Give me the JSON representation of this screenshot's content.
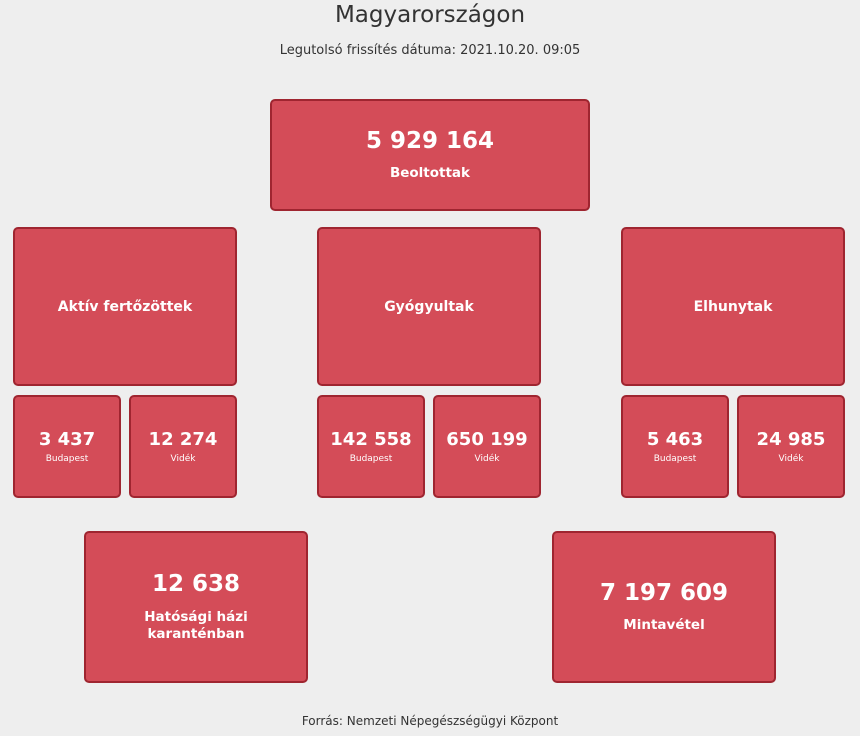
{
  "header": {
    "title": "Magyarországon",
    "updated": "Legutolsó frissítés dátuma: 2021.10.20. 09:05"
  },
  "vaccinated": {
    "value": "5 929 164",
    "label": "Beoltottak"
  },
  "groups": {
    "active": {
      "label": "Aktív fertőzöttek",
      "budapest": {
        "value": "3 437",
        "label": "Budapest"
      },
      "countryside": {
        "value": "12 274",
        "label": "Vidék"
      }
    },
    "recovered": {
      "label": "Gyógyultak",
      "budapest": {
        "value": "142 558",
        "label": "Budapest"
      },
      "countryside": {
        "value": "650 199",
        "label": "Vidék"
      }
    },
    "deceased": {
      "label": "Elhunytak",
      "budapest": {
        "value": "5 463",
        "label": "Budapest"
      },
      "countryside": {
        "value": "24 985",
        "label": "Vidék"
      }
    }
  },
  "quarantine": {
    "value": "12 638",
    "label": "Hatósági házi karanténban"
  },
  "sampling": {
    "value": "7 197 609",
    "label": "Mintavétel"
  },
  "footer": {
    "source": "Forrás: Nemzeti Népegészségügyi Központ"
  },
  "colors": {
    "card": "#d44c58",
    "card_border": "#9f2530",
    "background": "#eeeeee"
  }
}
